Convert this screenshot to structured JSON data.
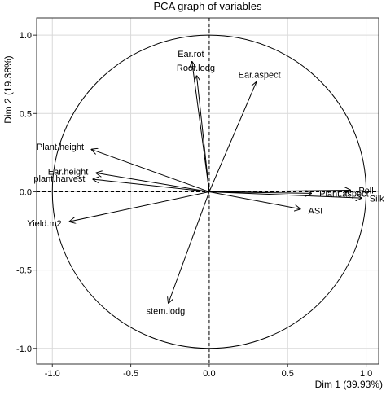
{
  "chart_data": {
    "type": "pca-variables",
    "title": "PCA graph of variables",
    "x_label": "Dim 1 (39.93%)",
    "y_label": "Dim 2 (19.38%)",
    "xlim": [
      -1.1,
      1.08
    ],
    "ylim": [
      -1.1,
      1.11
    ],
    "xticks": [
      {
        "value": -1.0,
        "label": "-1.0"
      },
      -0.5,
      {
        "value": 0,
        "label": "0.0"
      },
      0.5,
      {
        "value": 1.0,
        "label": "1.0"
      }
    ],
    "yticks": [
      {
        "value": -1.0,
        "label": "-1.0"
      },
      -0.5,
      {
        "value": 0,
        "label": "0.0"
      },
      0.5,
      {
        "value": 1.0,
        "label": "1.0"
      }
    ],
    "grid": true,
    "color": "#000000",
    "variables": [
      {
        "name": "Ear.rot",
        "x": -0.11,
        "y": 0.83
      },
      {
        "name": "Root.lodg",
        "x": -0.08,
        "y": 0.74
      },
      {
        "name": "Ear.aspect",
        "x": 0.3,
        "y": 0.7
      },
      {
        "name": "Plant.height",
        "x": -0.75,
        "y": 0.27
      },
      {
        "name": "Ear.height",
        "x": -0.72,
        "y": 0.12
      },
      {
        "name": "plant.harvest",
        "x": -0.74,
        "y": 0.08
      },
      {
        "name": "Yield.m2",
        "x": -0.89,
        "y": -0.19
      },
      {
        "name": "stem.lodg",
        "x": -0.26,
        "y": -0.71
      },
      {
        "name": "Poll",
        "x": 0.9,
        "y": 0.01
      },
      {
        "name": "Silk",
        "x": 0.97,
        "y": -0.04
      },
      {
        "name": "Plant.aspect",
        "x": 0.65,
        "y": -0.01
      },
      {
        "name": "ASI",
        "x": 0.58,
        "y": -0.11
      }
    ]
  }
}
